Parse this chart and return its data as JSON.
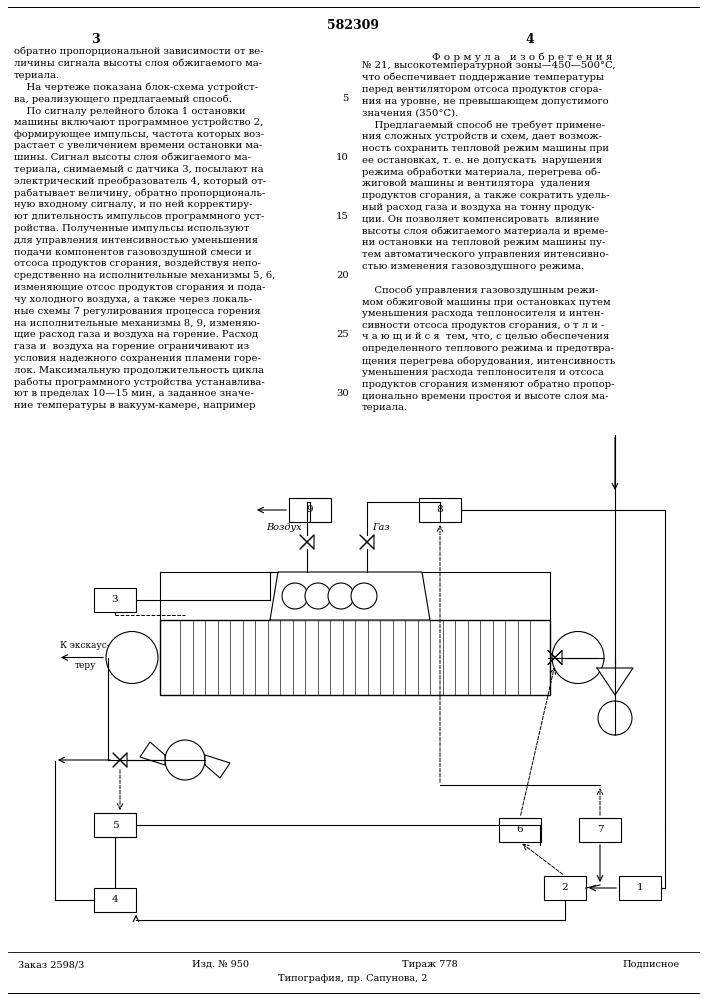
{
  "patent_number": "582309",
  "page_left": "3",
  "page_right": "4",
  "bg_color": "#ffffff",
  "text_color": "#000000",
  "left_col_lines": [
    "обратно пропорциональной зависимости от ве-",
    "личины сигнала высоты слоя обжигаемого ма-",
    "териала.",
    "    На чертеже показана блок-схема устройст-",
    "ва, реализующего предлагаемый способ.",
    "    По сигналу релейного блока 1 остановки",
    "машины включают программное устройство 2,",
    "формирующее импульсы, частота которых воз-",
    "растает с увеличением времени остановки ма-",
    "шины. Сигнал высоты слоя обжигаемого ма-",
    "териала, снимаемый с датчика 3, посылают на",
    "электрический преобразователь 4, который от-",
    "рабатывает величину, обратно пропорциональ-",
    "ную входному сигналу, и по ней корректиру-",
    "ют длительность импульсов программного уст-",
    "ройства. Полученные импульсы используют",
    "для управления интенсивностью уменьшения",
    "подачи компонентов газовоздушной смеси и",
    "отсоса продуктов сгорания, воздействуя непо-",
    "средственно на исполнительные механизмы 5, 6,",
    "изменяющие отсос продуктов сгорания и пода-",
    "чу холодного воздуха, а также через локаль-",
    "ные схемы 7 регулирования процесса горения",
    "на исполнительные механизмы 8, 9, изменяю-",
    "щие расход газа и воздуха на горение. Расход",
    "газа и  воздуха на горение ограничивают из",
    "условия надежного сохранения пламени горе-",
    "лок. Максимальную продолжительность цикла",
    "работы программного устройства устанавлива-",
    "ют в пределах 10—15 мин, а заданное значе-",
    "ние температуры в вакуум-камере, например"
  ],
  "line_nums": [
    0,
    0,
    0,
    0,
    5,
    0,
    0,
    0,
    0,
    10,
    0,
    0,
    0,
    0,
    15,
    0,
    0,
    0,
    0,
    20,
    0,
    0,
    0,
    0,
    25,
    0,
    0,
    0,
    0,
    30,
    0
  ],
  "right_col_title": "Ф о р м у л а   и з о б р е т е н и я",
  "right_col_lines": [
    "№ 21, высокотемпературной зоны—450—500°C,",
    "что обеспечивает поддержание температуры",
    "перед вентилятором отсоса продуктов сгора-",
    "ния на уровне, не превышающем допустимого",
    "значения (350°C).",
    "    Предлагаемый способ не требует примене-",
    "ния сложных устройств и схем, дает возмож-",
    "ность сохранить тепловой режим машины при",
    "ее остановках, т. е. не допускать  нарушения",
    "режима обработки материала, перегрева об-",
    "жиговой машины и вентилятора  удаления",
    "продуктов сгорания, а также сократить удель-",
    "ный расход газа и воздуха на тонну продук-",
    "ции. Он позволяет компенсировать  влияние",
    "высоты слоя обжигаемого материала и време-",
    "ни остановки на тепловой режим машины пу-",
    "тем автоматического управления интенсивно-",
    "стью изменения газовоздушного режима.",
    "",
    "    Способ управления газовоздушным режи-",
    "мом обжиговой машины при остановках путем",
    "уменьшения расхода теплоносителя и интен-",
    "сивности отсоса продуктов сгорания, о т л и -",
    "ч а ю щ и й с я  тем, что, с целью обеспечения",
    "определенного теплового режима и предотвра-",
    "щения перегрева оборудования, интенсивность",
    "уменьшения расхода теплоносителя и отсоса",
    "продуктов сгорания изменяют обратно пропор-",
    "ционально времени простоя и высоте слоя ма-",
    "териала."
  ],
  "footer_left": "Заказ 2598/3",
  "footer_mid1": "Изд. № 950",
  "footer_mid2": "Тираж 778",
  "footer_right": "Подписное",
  "footer_bottom": "Типография, пр. Сапунова, 2"
}
